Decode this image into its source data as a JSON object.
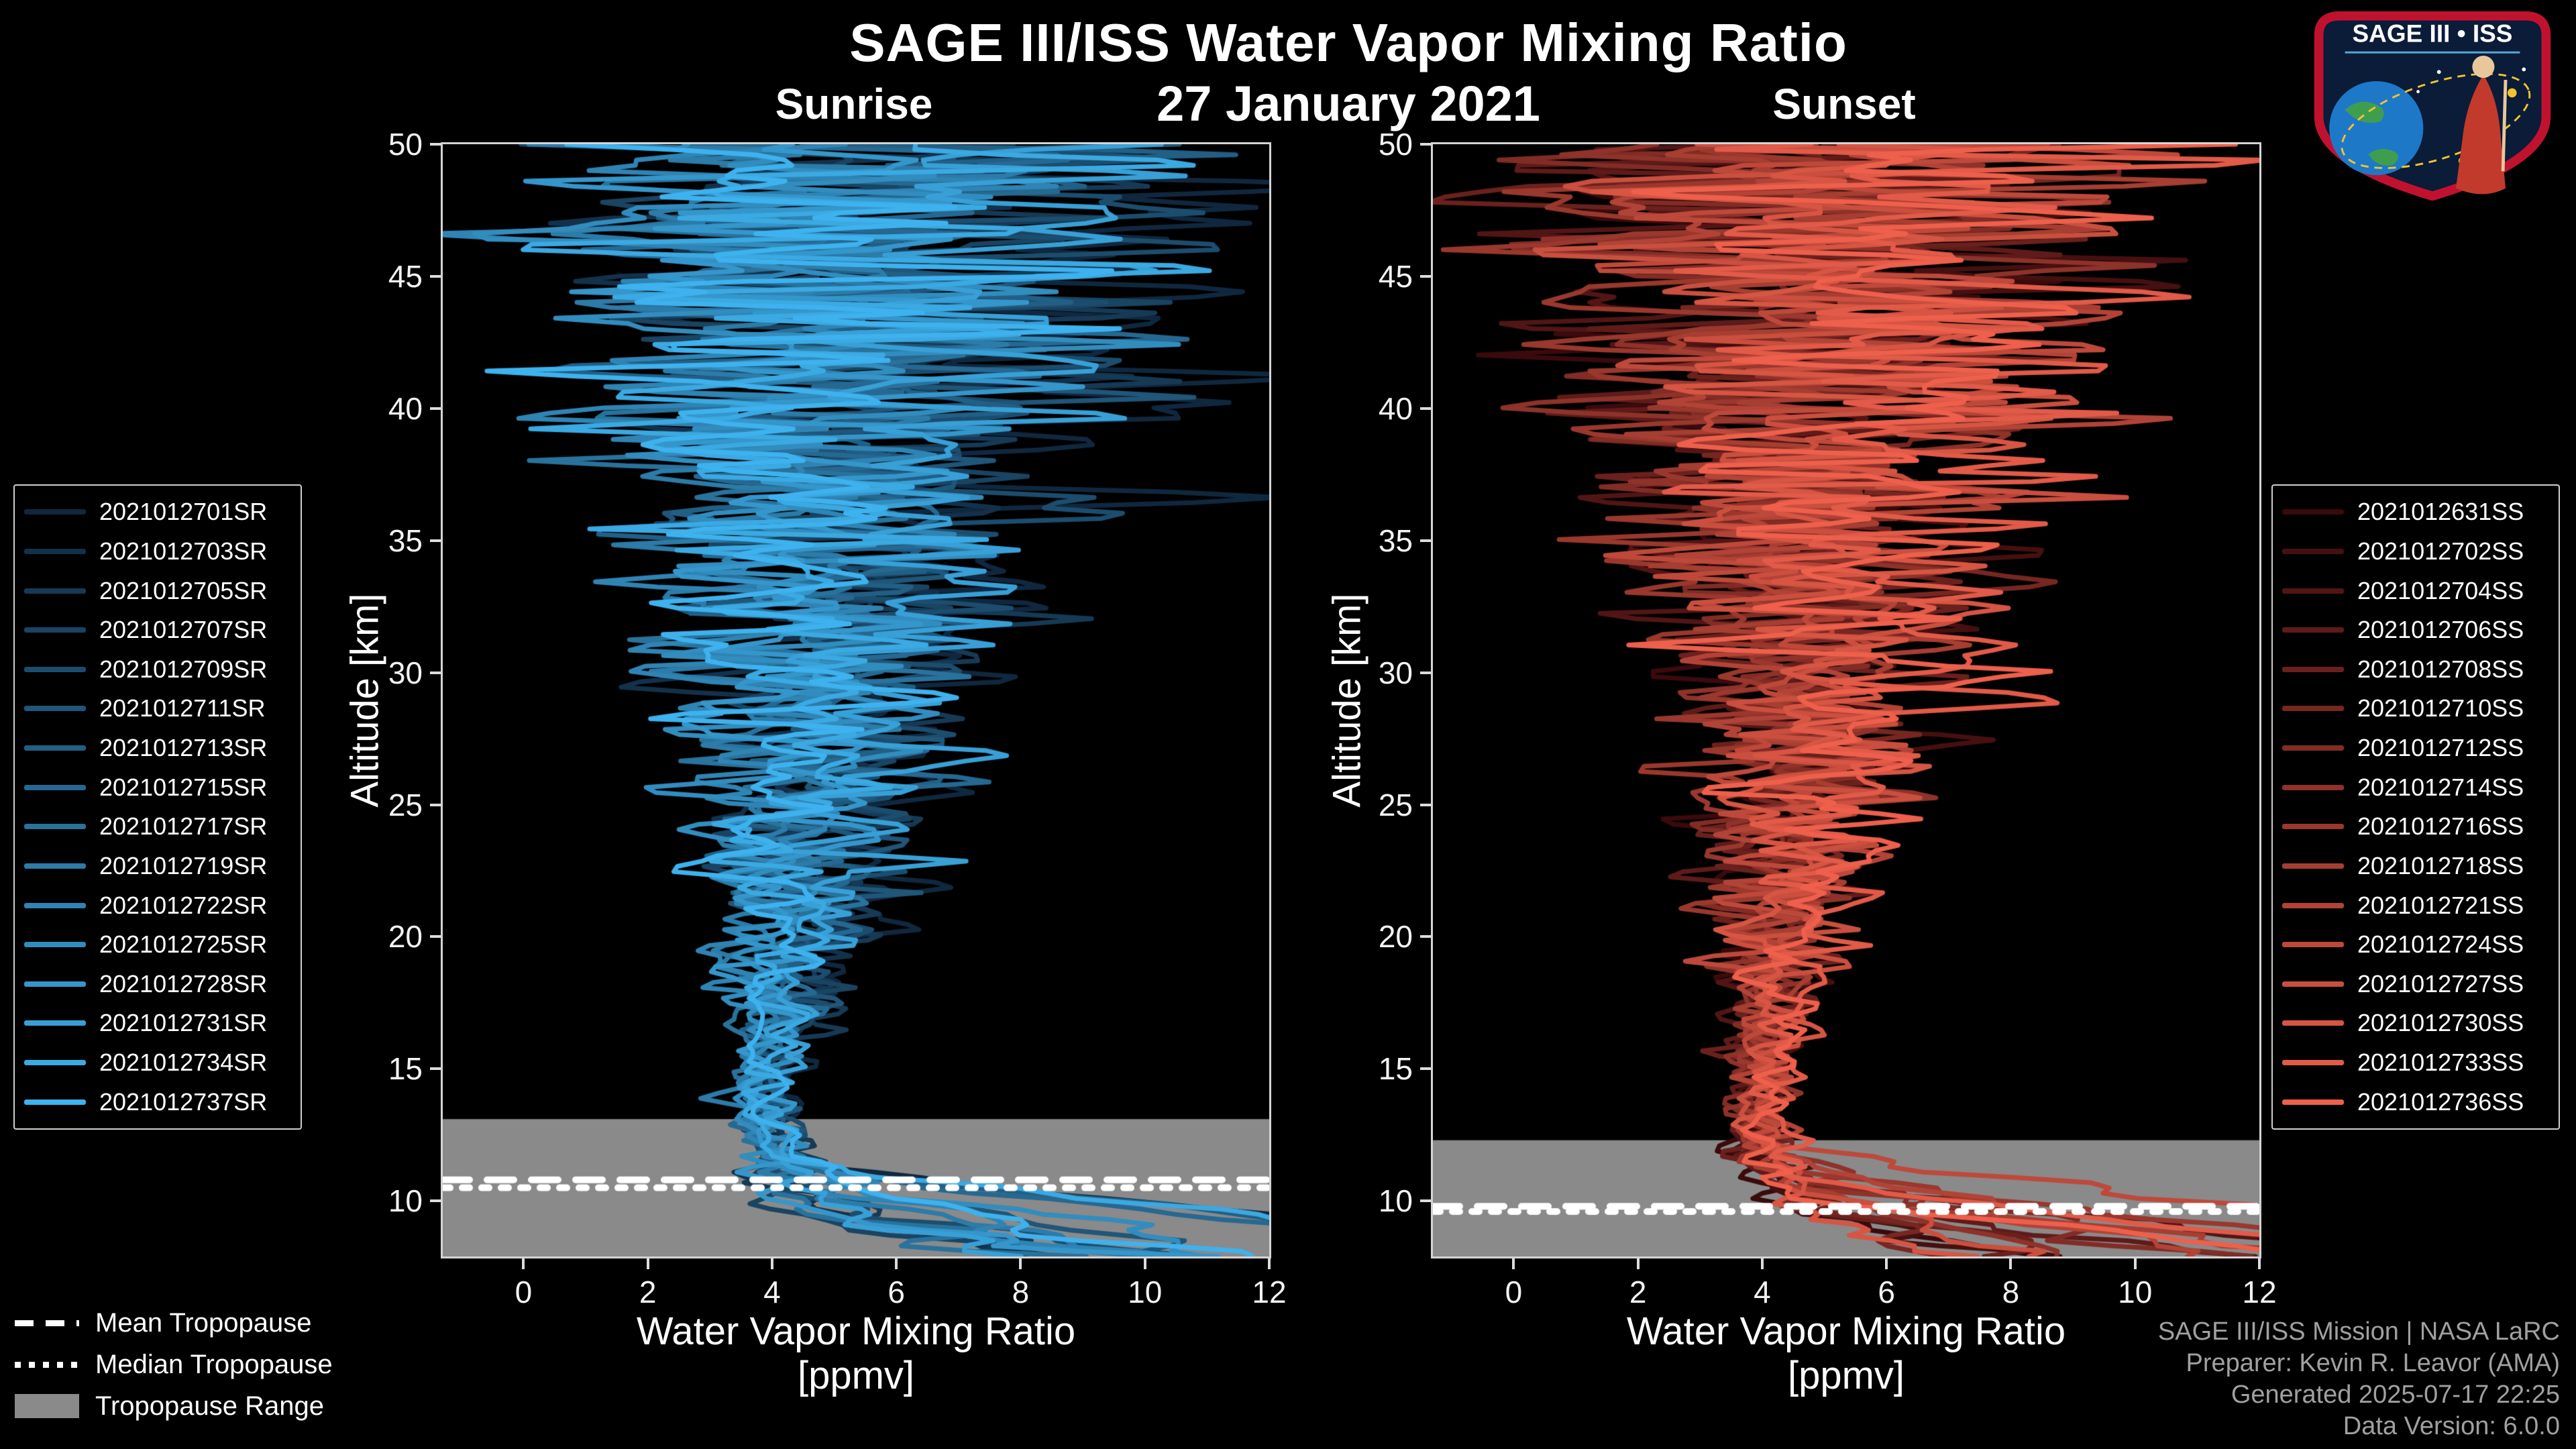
{
  "header": {
    "title": "SAGE III/ISS Water Vapor Mixing Ratio",
    "date": "27 January 2021",
    "left_panel_label": "Sunrise",
    "right_panel_label": "Sunset"
  },
  "logo": {
    "title": "SAGE III • ISS"
  },
  "tropopause_legend": {
    "items": [
      {
        "label": "Mean Tropopause",
        "style": "dashed"
      },
      {
        "label": "Median Tropopause",
        "style": "dotted"
      },
      {
        "label": "Tropopause Range",
        "style": "band"
      }
    ]
  },
  "footer": {
    "lines": [
      "SAGE III/ISS Mission | NASA LaRC",
      "Preparer: Kevin R. Leavor (AMA)",
      "Generated 2025-07-17 22:25",
      "Data Version: 6.0.0"
    ]
  },
  "chart_data": [
    {
      "type": "line",
      "panel": "Sunrise",
      "xlabel": "Water Vapor Mixing Ratio",
      "xlabel_units": "[ppmv]",
      "ylabel": "Altitude [km]",
      "xlim": [
        -1.3,
        12
      ],
      "ylim": [
        7.9,
        50
      ],
      "xticks": [
        0,
        2,
        4,
        6,
        8,
        10,
        12
      ],
      "yticks": [
        10,
        15,
        20,
        25,
        30,
        35,
        40,
        45,
        50
      ],
      "grid": false,
      "legend_position": "outside-left",
      "series": [
        {
          "name": "2021012701SR",
          "color": "#10283F"
        },
        {
          "name": "2021012703SR",
          "color": "#13314B"
        },
        {
          "name": "2021012705SR",
          "color": "#163A56"
        },
        {
          "name": "2021012707SR",
          "color": "#194462"
        },
        {
          "name": "2021012709SR",
          "color": "#1C4D6E"
        },
        {
          "name": "2021012711SR",
          "color": "#1F5679"
        },
        {
          "name": "2021012713SR",
          "color": "#225F85"
        },
        {
          "name": "2021012715SR",
          "color": "#266891"
        },
        {
          "name": "2021012717SR",
          "color": "#29729C"
        },
        {
          "name": "2021012719SR",
          "color": "#2C7BA8"
        },
        {
          "name": "2021012722SR",
          "color": "#2F84B4"
        },
        {
          "name": "2021012725SR",
          "color": "#328DBF"
        },
        {
          "name": "2021012728SR",
          "color": "#3596CB"
        },
        {
          "name": "2021012731SR",
          "color": "#38A0D7"
        },
        {
          "name": "2021012734SR",
          "color": "#3BA9E2"
        },
        {
          "name": "2021012737SR",
          "color": "#3EB2EE"
        }
      ],
      "tropopause": {
        "mean_km": 10.8,
        "median_km": 10.5,
        "range_km": [
          7.9,
          13.1
        ],
        "band_color": "#8A8A8A"
      },
      "profile_estimate": {
        "altitudes_km": [
          8,
          9,
          10,
          11,
          12,
          13,
          15,
          17,
          20,
          25,
          30,
          35,
          40,
          45,
          50
        ],
        "mean_ppmv": [
          4.7,
          4.5,
          4.3,
          4.1,
          4.0,
          3.9,
          3.9,
          4.1,
          4.3,
          4.6,
          4.8,
          5.0,
          5.1,
          5.2,
          5.4
        ],
        "spread_ppmv": [
          1.0,
          0.8,
          0.6,
          0.5,
          0.4,
          0.35,
          0.4,
          0.5,
          0.75,
          1.1,
          1.5,
          2.0,
          2.5,
          2.9,
          3.1
        ]
      }
    },
    {
      "type": "line",
      "panel": "Sunset",
      "xlabel": "Water Vapor Mixing Ratio",
      "xlabel_units": "[ppmv]",
      "ylabel": "Altitude [km]",
      "xlim": [
        -1.3,
        12
      ],
      "ylim": [
        7.9,
        50
      ],
      "xticks": [
        0,
        2,
        4,
        6,
        8,
        10,
        12
      ],
      "yticks": [
        10,
        15,
        20,
        25,
        30,
        35,
        40,
        45,
        50
      ],
      "grid": false,
      "legend_position": "outside-right",
      "series": [
        {
          "name": "2021012631SS",
          "color": "#3A0A0C"
        },
        {
          "name": "2021012702SS",
          "color": "#461010"
        },
        {
          "name": "2021012704SS",
          "color": "#521515"
        },
        {
          "name": "2021012706SS",
          "color": "#5E1B19"
        },
        {
          "name": "2021012708SS",
          "color": "#6A211D"
        },
        {
          "name": "2021012710SS",
          "color": "#762721"
        },
        {
          "name": "2021012712SS",
          "color": "#822C26"
        },
        {
          "name": "2021012714SS",
          "color": "#8E322A"
        },
        {
          "name": "2021012716SS",
          "color": "#9A382E"
        },
        {
          "name": "2021012718SS",
          "color": "#A63E32"
        },
        {
          "name": "2021012721SS",
          "color": "#B24337"
        },
        {
          "name": "2021012724SS",
          "color": "#BE493B"
        },
        {
          "name": "2021012727SS",
          "color": "#CA4F3F"
        },
        {
          "name": "2021012730SS",
          "color": "#D65543"
        },
        {
          "name": "2021012733SS",
          "color": "#E25A48"
        },
        {
          "name": "2021012736SS",
          "color": "#EE604C"
        }
      ],
      "tropopause": {
        "mean_km": 9.8,
        "median_km": 9.6,
        "range_km": [
          7.9,
          12.3
        ],
        "band_color": "#8A8A8A"
      },
      "profile_estimate": {
        "altitudes_km": [
          8,
          9,
          10,
          11,
          12,
          13,
          15,
          17,
          20,
          25,
          30,
          35,
          40,
          45,
          50
        ],
        "mean_ppmv": [
          4.8,
          4.6,
          4.4,
          4.2,
          4.1,
          4.0,
          4.0,
          4.2,
          4.4,
          4.7,
          4.9,
          5.1,
          5.2,
          5.3,
          5.5
        ],
        "spread_ppmv": [
          1.0,
          0.8,
          0.6,
          0.5,
          0.4,
          0.35,
          0.4,
          0.5,
          0.75,
          1.1,
          1.5,
          2.0,
          2.5,
          2.9,
          3.1
        ]
      }
    }
  ]
}
